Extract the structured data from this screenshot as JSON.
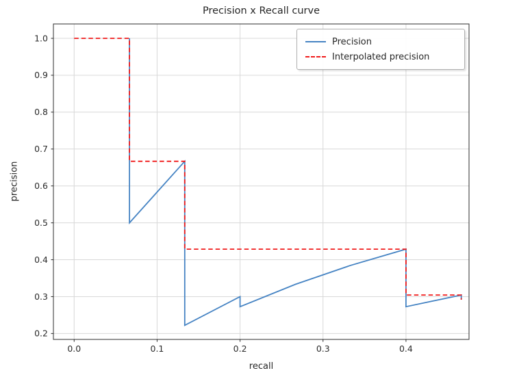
{
  "figure_title": "Precision x Recall curve",
  "chart_data": {
    "type": "line",
    "title": "Precision x Recall curve",
    "xlabel": "recall",
    "ylabel": "precision",
    "xlim": [
      -0.025,
      0.476
    ],
    "ylim": [
      0.184,
      1.039
    ],
    "x_ticks": [
      0.0,
      0.1,
      0.2,
      0.3,
      0.4
    ],
    "x_tick_labels": [
      "0.0",
      "0.1",
      "0.2",
      "0.3",
      "0.4"
    ],
    "y_ticks": [
      0.2,
      0.3,
      0.4,
      0.5,
      0.6,
      0.7,
      0.8,
      0.9,
      1.0
    ],
    "y_tick_labels": [
      "0.2",
      "0.3",
      "0.4",
      "0.5",
      "0.6",
      "0.7",
      "0.8",
      "0.9",
      "1.0"
    ],
    "grid": true,
    "legend_position": "upper right",
    "colors": {
      "grid": "#d8d8d8",
      "spine": "#2b2b2b",
      "tick_text": "#2b2b2b",
      "background": "#ffffff"
    },
    "series": [
      {
        "name": "Precision",
        "style": "solid",
        "color": "#4583c3",
        "points": [
          [
            0.0667,
            1.0
          ],
          [
            0.0667,
            0.5
          ],
          [
            0.1333,
            0.6667
          ],
          [
            0.1333,
            0.2222
          ],
          [
            0.2,
            0.3
          ],
          [
            0.2,
            0.2727
          ],
          [
            0.2667,
            0.3333
          ],
          [
            0.3333,
            0.3846
          ],
          [
            0.4,
            0.4286
          ],
          [
            0.4,
            0.2727
          ],
          [
            0.4667,
            0.3043
          ],
          [
            0.4667,
            0.2917
          ]
        ]
      },
      {
        "name": "Interpolated precision",
        "style": "dashed",
        "color": "#f01a1a",
        "points": [
          [
            0.0,
            1.0
          ],
          [
            0.0667,
            1.0
          ],
          [
            0.0667,
            0.6667
          ],
          [
            0.1333,
            0.6667
          ],
          [
            0.1333,
            0.4286
          ],
          [
            0.4,
            0.4286
          ],
          [
            0.4,
            0.3043
          ],
          [
            0.4667,
            0.3043
          ],
          [
            0.4667,
            0.2917
          ]
        ]
      }
    ]
  }
}
